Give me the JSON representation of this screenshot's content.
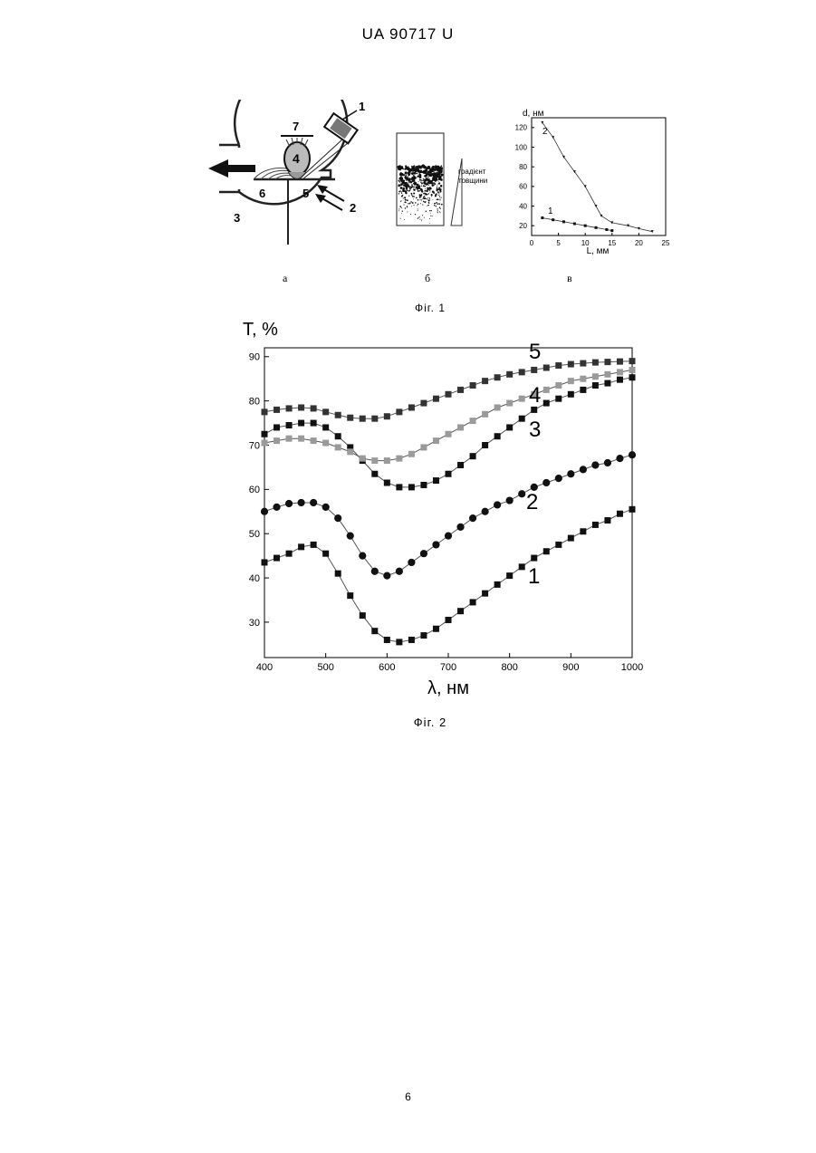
{
  "header": {
    "patent_number": "UA   90717   U"
  },
  "figure1": {
    "caption": "Фіг. 1",
    "sub_labels": [
      "а",
      "б",
      "в"
    ],
    "panel_a": {
      "labels": [
        "1",
        "2",
        "3",
        "4",
        "5",
        "6",
        "7"
      ]
    },
    "panel_b": {
      "gradient_label_line1": "градієнт",
      "gradient_label_line2": "товщини"
    },
    "panel_c": {
      "chart_data": {
        "type": "line",
        "xlabel": "L, мм",
        "ylabel": "d, нм",
        "xlim": [
          0,
          25
        ],
        "ylim": [
          10,
          130
        ],
        "xticks": [
          "0",
          "5",
          "10",
          "15",
          "20",
          "25"
        ],
        "yticks": [
          "20",
          "40",
          "60",
          "80",
          "100",
          "120"
        ],
        "series": [
          {
            "name": "1",
            "x": [
              2,
              4,
              6,
              8,
              10,
              12,
              14,
              15
            ],
            "y": [
              28,
              26,
              24,
              22,
              20,
              18,
              16,
              15
            ]
          },
          {
            "name": "2",
            "x": [
              2,
              4,
              6,
              8,
              10,
              12,
              13,
              15,
              18,
              20,
              22.5
            ],
            "y": [
              125,
              110,
              90,
              75,
              60,
              40,
              30,
              23,
              20,
              17,
              14
            ]
          }
        ]
      }
    }
  },
  "figure2": {
    "caption": "Фіг. 2",
    "chart_data": {
      "type": "scatter",
      "xlabel": "λ, нм",
      "ylabel": "Т, %",
      "xlim": [
        400,
        1000
      ],
      "ylim": [
        22,
        92
      ],
      "xticks": [
        "400",
        "500",
        "600",
        "700",
        "800",
        "900",
        "1000"
      ],
      "yticks": [
        "30",
        "40",
        "50",
        "60",
        "70",
        "80",
        "90"
      ],
      "grid": false,
      "series": [
        {
          "name": "1",
          "marker": "square",
          "color": "#111111",
          "x": [
            400,
            420,
            440,
            460,
            480,
            500,
            520,
            540,
            560,
            580,
            600,
            620,
            640,
            660,
            680,
            700,
            720,
            740,
            760,
            780,
            800,
            820,
            840,
            860,
            880,
            900,
            920,
            940,
            960,
            980,
            1000
          ],
          "y": [
            43.5,
            44.5,
            45.5,
            47,
            47.5,
            45.5,
            41,
            36,
            31.5,
            28,
            26,
            25.5,
            26,
            27,
            28.5,
            30.5,
            32.5,
            34.5,
            36.5,
            38.5,
            40.5,
            42.5,
            44.5,
            46,
            47.5,
            49,
            50.5,
            52,
            53,
            54.5,
            55.5
          ]
        },
        {
          "name": "2",
          "marker": "circle",
          "color": "#111111",
          "x": [
            400,
            420,
            440,
            460,
            480,
            500,
            520,
            540,
            560,
            580,
            600,
            620,
            640,
            660,
            680,
            700,
            720,
            740,
            760,
            780,
            800,
            820,
            840,
            860,
            880,
            900,
            920,
            940,
            960,
            980,
            1000
          ],
          "y": [
            55,
            56,
            56.8,
            57,
            57,
            56,
            53.5,
            49.5,
            45,
            41.5,
            40.5,
            41.5,
            43.5,
            45.5,
            47.5,
            49.5,
            51.5,
            53.5,
            55,
            56.5,
            57.5,
            59,
            60.5,
            61.5,
            62.5,
            63.5,
            64.5,
            65.5,
            66,
            67,
            67.8
          ]
        },
        {
          "name": "3",
          "marker": "square",
          "color": "#111111",
          "x": [
            400,
            420,
            440,
            460,
            480,
            500,
            520,
            540,
            560,
            580,
            600,
            620,
            640,
            660,
            680,
            700,
            720,
            740,
            760,
            780,
            800,
            820,
            840,
            860,
            880,
            900,
            920,
            940,
            960,
            980,
            1000
          ],
          "y": [
            72.5,
            74,
            74.5,
            75,
            75,
            74,
            72,
            69.5,
            66.5,
            63.5,
            61.5,
            60.5,
            60.5,
            61,
            62,
            63.5,
            65.5,
            67.5,
            70,
            72,
            74,
            76,
            78,
            79.5,
            80.5,
            81.5,
            82.5,
            83.5,
            84,
            84.8,
            85.3
          ]
        },
        {
          "name": "4",
          "marker": "square",
          "color": "#9a9a9a",
          "x": [
            400,
            420,
            440,
            460,
            480,
            500,
            520,
            540,
            560,
            580,
            600,
            620,
            640,
            660,
            680,
            700,
            720,
            740,
            760,
            780,
            800,
            820,
            840,
            860,
            880,
            900,
            920,
            940,
            960,
            980,
            1000
          ],
          "y": [
            70.5,
            71,
            71.5,
            71.5,
            71,
            70.5,
            69.5,
            68.5,
            67,
            66.5,
            66.5,
            67,
            68,
            69.5,
            71,
            72.5,
            74,
            75.5,
            77,
            78.5,
            79.5,
            80.5,
            81.5,
            82.5,
            83.5,
            84.5,
            85,
            85.5,
            86,
            86.5,
            87
          ]
        },
        {
          "name": "5",
          "marker": "square",
          "color": "#333333",
          "x": [
            400,
            420,
            440,
            460,
            480,
            500,
            520,
            540,
            560,
            580,
            600,
            620,
            640,
            660,
            680,
            700,
            720,
            740,
            760,
            780,
            800,
            820,
            840,
            860,
            880,
            900,
            920,
            940,
            960,
            980,
            1000
          ],
          "y": [
            77.5,
            78,
            78.3,
            78.5,
            78.3,
            77.5,
            76.8,
            76.2,
            76,
            76,
            76.5,
            77.5,
            78.5,
            79.5,
            80.5,
            81.5,
            82.5,
            83.5,
            84.5,
            85.3,
            86,
            86.5,
            87,
            87.5,
            88,
            88.3,
            88.5,
            88.7,
            88.8,
            88.9,
            89
          ]
        }
      ]
    }
  },
  "footer": {
    "page_number": "6"
  }
}
